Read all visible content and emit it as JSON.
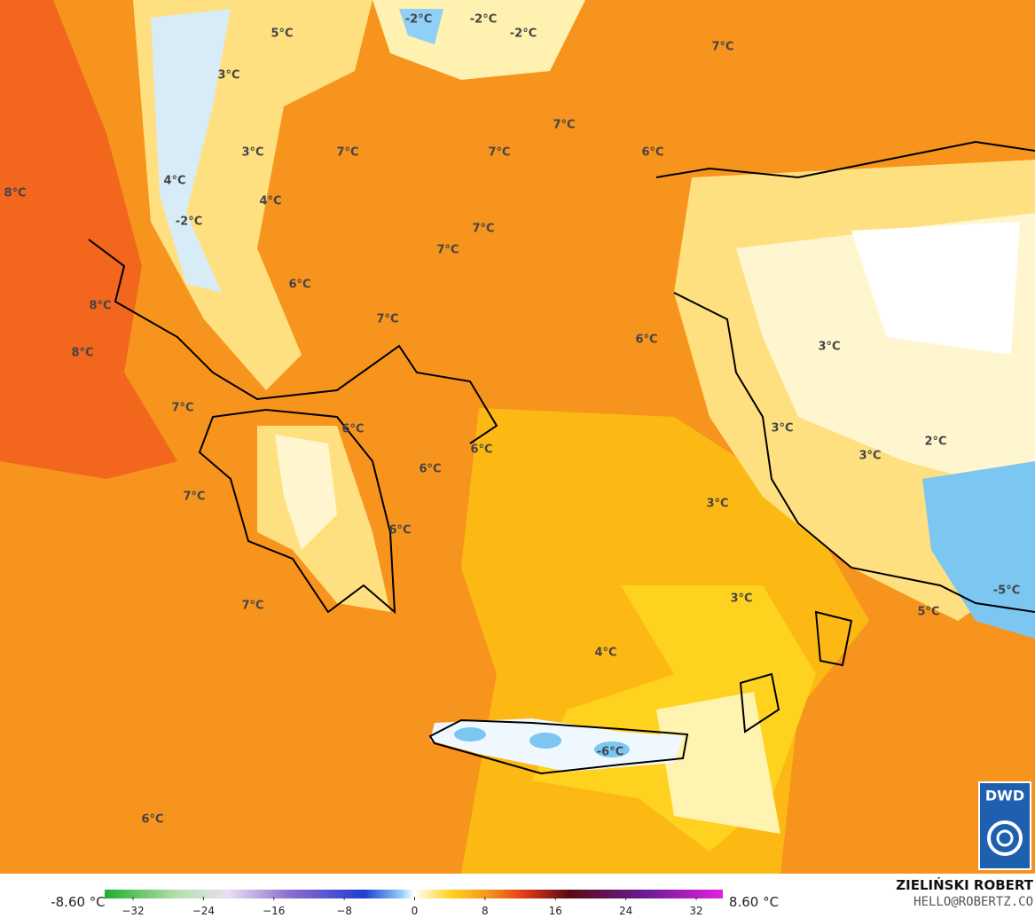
{
  "map": {
    "labels": [
      "-2°C",
      "-2°C",
      "-2°C",
      "5°C",
      "7°C",
      "3°C",
      "7°C",
      "3°C",
      "7°C",
      "7°C",
      "6°C",
      "8°C",
      "4°C",
      "4°C",
      "-2°C",
      "7°C",
      "7°C",
      "6°C",
      "8°C",
      "7°C",
      "6°C",
      "3°C",
      "8°C",
      "7°C",
      "3°C",
      "6°C",
      "2°C",
      "6°C",
      "3°C",
      "6°C",
      "7°C",
      "3°C",
      "6°C",
      "-5°C",
      "3°C",
      "7°C",
      "5°C",
      "4°C",
      "-6°C",
      "6°C"
    ]
  },
  "colorbar": {
    "min_label": "-8.60 °C",
    "max_label": "8.60 °C",
    "ticks": [
      {
        "value": -32,
        "label": "−32"
      },
      {
        "value": -24,
        "label": "−24"
      },
      {
        "value": -16,
        "label": "−16"
      },
      {
        "value": -8,
        "label": "−8"
      },
      0,
      8,
      16,
      24,
      32
    ]
  },
  "credit": {
    "name": "ZIELIŃSKI ROBERT",
    "email": "HELLO@ROBERTZ.CO"
  },
  "logo": "DWD"
}
